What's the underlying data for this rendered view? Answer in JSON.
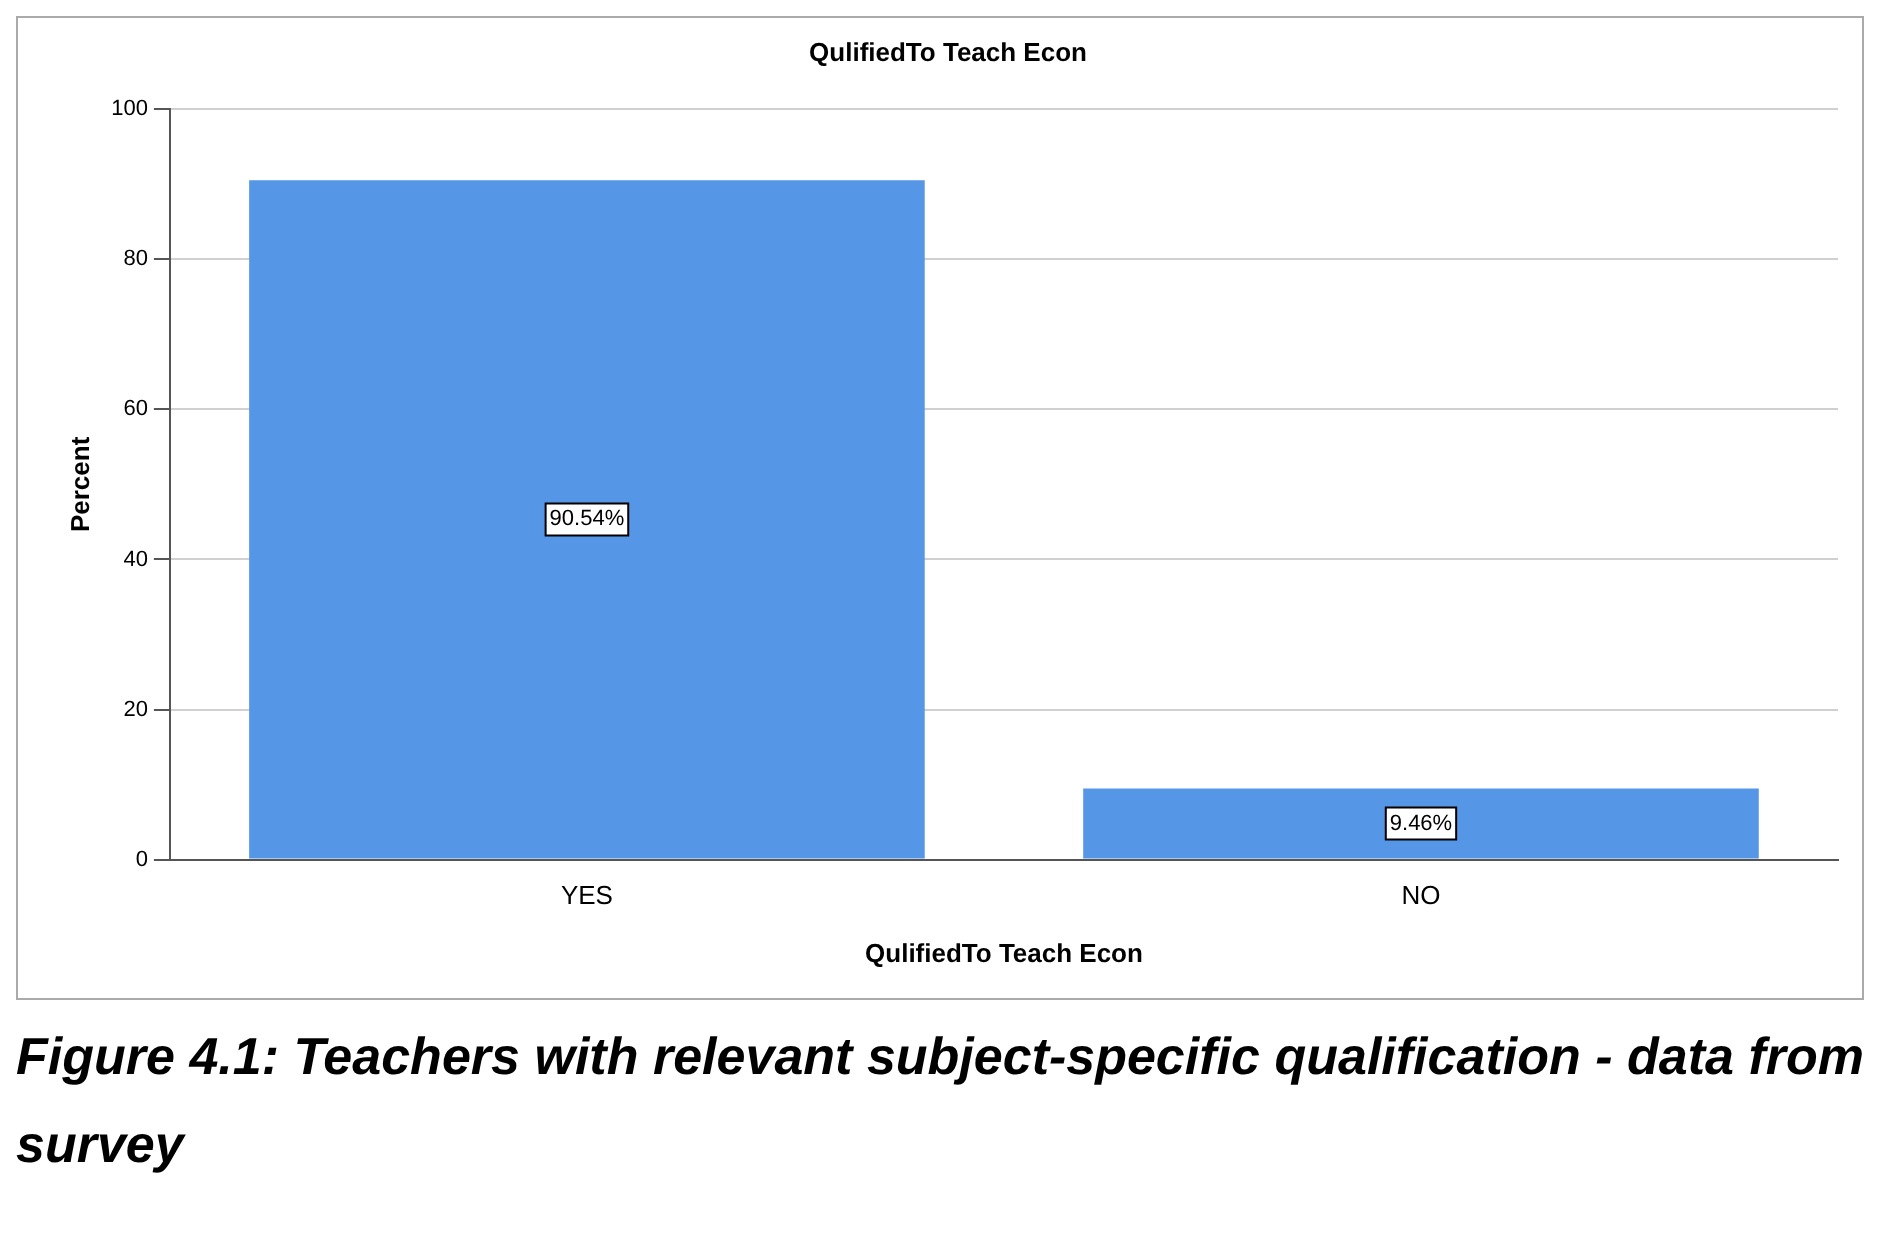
{
  "chart_data": {
    "type": "bar",
    "title": "QulifiedTo Teach Econ",
    "xlabel": "QulifiedTo Teach Econ",
    "ylabel": "Percent",
    "categories": [
      "YES",
      "NO"
    ],
    "values": [
      90.54,
      9.46
    ],
    "value_labels": [
      "90.54%",
      "9.46%"
    ],
    "color": "#5596e6",
    "ylim": [
      0,
      100
    ],
    "yticks": [
      0,
      20,
      40,
      60,
      80,
      100
    ],
    "grid": "y",
    "legend": false,
    "annotations": [
      "Figure 4.1: Teachers with relevant subject-specific qualification - data from survey"
    ]
  }
}
